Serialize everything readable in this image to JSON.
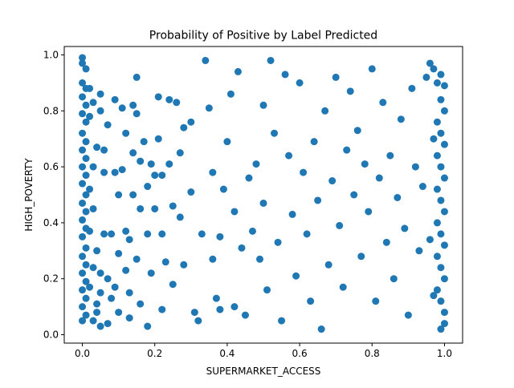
{
  "chart_data": {
    "type": "scatter",
    "title": "Probability of Positive by Label Predicted",
    "xlabel": "SUPERMARKET_ACCESS",
    "ylabel": "HIGH_POVERTY",
    "xlim": [
      -0.05,
      1.05
    ],
    "ylim": [
      -0.03,
      1.03
    ],
    "x_ticks": [
      0.0,
      0.2,
      0.4,
      0.6,
      0.8,
      1.0
    ],
    "x_tick_labels": [
      "0.0",
      "0.2",
      "0.4",
      "0.6",
      "0.8",
      "1.0"
    ],
    "y_ticks": [
      0.0,
      0.2,
      0.4,
      0.6,
      0.8,
      1.0
    ],
    "y_tick_labels": [
      "0.0",
      "0.2",
      "0.4",
      "0.6",
      "0.8",
      "1.0"
    ],
    "grid": false,
    "legend": "none",
    "marker_color": "#1f77b4",
    "series": [
      {
        "points": [
          [
            0.0,
            0.99
          ],
          [
            0.0,
            0.97
          ],
          [
            0.01,
            0.95
          ],
          [
            0.0,
            0.9
          ],
          [
            0.01,
            0.88
          ],
          [
            0.0,
            0.85
          ],
          [
            0.01,
            0.82
          ],
          [
            0.0,
            0.79
          ],
          [
            0.01,
            0.76
          ],
          [
            0.0,
            0.72
          ],
          [
            0.01,
            0.69
          ],
          [
            0.0,
            0.66
          ],
          [
            0.01,
            0.63
          ],
          [
            0.0,
            0.6
          ],
          [
            0.01,
            0.57
          ],
          [
            0.0,
            0.54
          ],
          [
            0.01,
            0.5
          ],
          [
            0.0,
            0.47
          ],
          [
            0.01,
            0.44
          ],
          [
            0.0,
            0.41
          ],
          [
            0.01,
            0.38
          ],
          [
            0.0,
            0.35
          ],
          [
            0.01,
            0.31
          ],
          [
            0.0,
            0.28
          ],
          [
            0.01,
            0.25
          ],
          [
            0.0,
            0.22
          ],
          [
            0.01,
            0.19
          ],
          [
            0.0,
            0.16
          ],
          [
            0.01,
            0.13
          ],
          [
            0.0,
            0.1
          ],
          [
            0.01,
            0.07
          ],
          [
            0.0,
            0.05
          ],
          [
            0.02,
            0.88
          ],
          [
            0.03,
            0.83
          ],
          [
            0.02,
            0.78
          ],
          [
            0.04,
            0.67
          ],
          [
            0.03,
            0.6
          ],
          [
            0.02,
            0.52
          ],
          [
            0.03,
            0.45
          ],
          [
            0.02,
            0.37
          ],
          [
            0.04,
            0.3
          ],
          [
            0.03,
            0.24
          ],
          [
            0.02,
            0.17
          ],
          [
            0.04,
            0.11
          ],
          [
            0.03,
            0.05
          ],
          [
            0.05,
            0.03
          ],
          [
            0.04,
            0.08
          ],
          [
            0.05,
            0.15
          ],
          [
            0.05,
            0.22
          ],
          [
            0.06,
            0.36
          ],
          [
            0.05,
            0.8
          ],
          [
            0.05,
            0.86
          ],
          [
            0.06,
            0.66
          ],
          [
            0.06,
            0.58
          ],
          [
            0.07,
            0.75
          ],
          [
            0.08,
            0.36
          ],
          [
            0.07,
            0.2
          ],
          [
            0.08,
            0.13
          ],
          [
            0.07,
            0.04
          ],
          [
            0.09,
            0.84
          ],
          [
            0.09,
            0.58
          ],
          [
            0.1,
            0.5
          ],
          [
            0.1,
            0.29
          ],
          [
            0.09,
            0.17
          ],
          [
            0.1,
            0.08
          ],
          [
            0.11,
            0.81
          ],
          [
            0.12,
            0.72
          ],
          [
            0.11,
            0.59
          ],
          [
            0.12,
            0.37
          ],
          [
            0.12,
            0.23
          ],
          [
            0.13,
            0.15
          ],
          [
            0.13,
            0.06
          ],
          [
            0.14,
            0.82
          ],
          [
            0.14,
            0.65
          ],
          [
            0.14,
            0.5
          ],
          [
            0.13,
            0.34
          ],
          [
            0.15,
            0.92
          ],
          [
            0.15,
            0.79
          ],
          [
            0.16,
            0.62
          ],
          [
            0.16,
            0.45
          ],
          [
            0.15,
            0.27
          ],
          [
            0.16,
            0.11
          ],
          [
            0.17,
            0.69
          ],
          [
            0.18,
            0.53
          ],
          [
            0.18,
            0.36
          ],
          [
            0.18,
            0.03
          ],
          [
            0.19,
            0.61
          ],
          [
            0.2,
            0.57
          ],
          [
            0.2,
            0.45
          ],
          [
            0.19,
            0.22
          ],
          [
            0.21,
            0.85
          ],
          [
            0.21,
            0.7
          ],
          [
            0.22,
            0.57
          ],
          [
            0.22,
            0.36
          ],
          [
            0.22,
            0.09
          ],
          [
            0.23,
            0.26
          ],
          [
            0.24,
            0.84
          ],
          [
            0.24,
            0.61
          ],
          [
            0.25,
            0.46
          ],
          [
            0.26,
            0.83
          ],
          [
            0.25,
            0.18
          ],
          [
            0.27,
            0.65
          ],
          [
            0.27,
            0.42
          ],
          [
            0.28,
            0.25
          ],
          [
            0.28,
            0.74
          ],
          [
            0.3,
            0.76
          ],
          [
            0.3,
            0.51
          ],
          [
            0.31,
            0.08
          ],
          [
            0.32,
            0.05
          ],
          [
            0.33,
            0.36
          ],
          [
            0.34,
            0.98
          ],
          [
            0.35,
            0.81
          ],
          [
            0.36,
            0.58
          ],
          [
            0.36,
            0.27
          ],
          [
            0.37,
            0.13
          ],
          [
            0.38,
            0.09
          ],
          [
            0.38,
            0.35
          ],
          [
            0.39,
            0.52
          ],
          [
            0.4,
            0.69
          ],
          [
            0.41,
            0.86
          ],
          [
            0.42,
            0.44
          ],
          [
            0.42,
            0.1
          ],
          [
            0.43,
            0.94
          ],
          [
            0.44,
            0.31
          ],
          [
            0.45,
            0.07
          ],
          [
            0.46,
            0.56
          ],
          [
            0.47,
            0.37
          ],
          [
            0.48,
            0.61
          ],
          [
            0.49,
            0.27
          ],
          [
            0.5,
            0.82
          ],
          [
            0.5,
            0.47
          ],
          [
            0.51,
            0.16
          ],
          [
            0.52,
            0.98
          ],
          [
            0.53,
            0.72
          ],
          [
            0.54,
            0.33
          ],
          [
            0.55,
            0.05
          ],
          [
            0.56,
            0.93
          ],
          [
            0.57,
            0.64
          ],
          [
            0.58,
            0.43
          ],
          [
            0.59,
            0.21
          ],
          [
            0.6,
            0.9
          ],
          [
            0.61,
            0.58
          ],
          [
            0.62,
            0.36
          ],
          [
            0.63,
            0.12
          ],
          [
            0.64,
            0.69
          ],
          [
            0.65,
            0.48
          ],
          [
            0.66,
            0.02
          ],
          [
            0.67,
            0.8
          ],
          [
            0.68,
            0.25
          ],
          [
            0.69,
            0.55
          ],
          [
            0.7,
            0.92
          ],
          [
            0.71,
            0.39
          ],
          [
            0.72,
            0.17
          ],
          [
            0.73,
            0.66
          ],
          [
            0.74,
            0.87
          ],
          [
            0.75,
            0.5
          ],
          [
            0.76,
            0.73
          ],
          [
            0.77,
            0.28
          ],
          [
            0.78,
            0.61
          ],
          [
            0.79,
            0.44
          ],
          [
            0.8,
            0.95
          ],
          [
            0.81,
            0.12
          ],
          [
            0.82,
            0.56
          ],
          [
            0.83,
            0.83
          ],
          [
            0.84,
            0.33
          ],
          [
            0.85,
            0.64
          ],
          [
            0.86,
            0.2
          ],
          [
            0.87,
            0.49
          ],
          [
            0.88,
            0.77
          ],
          [
            0.89,
            0.38
          ],
          [
            0.9,
            0.07
          ],
          [
            0.91,
            0.88
          ],
          [
            0.92,
            0.6
          ],
          [
            0.93,
            0.3
          ],
          [
            0.94,
            0.53
          ],
          [
            0.95,
            0.92
          ],
          [
            0.96,
            0.97
          ],
          [
            0.97,
            0.95
          ],
          [
            0.98,
            0.9
          ],
          [
            0.99,
            0.93
          ],
          [
            1.0,
            0.89
          ],
          [
            0.99,
            0.84
          ],
          [
            1.0,
            0.8
          ],
          [
            0.98,
            0.76
          ],
          [
            0.99,
            0.72
          ],
          [
            1.0,
            0.68
          ],
          [
            0.98,
            0.64
          ],
          [
            0.99,
            0.6
          ],
          [
            1.0,
            0.56
          ],
          [
            0.98,
            0.52
          ],
          [
            0.99,
            0.48
          ],
          [
            1.0,
            0.44
          ],
          [
            0.98,
            0.4
          ],
          [
            0.99,
            0.36
          ],
          [
            1.0,
            0.32
          ],
          [
            0.98,
            0.28
          ],
          [
            0.99,
            0.24
          ],
          [
            1.0,
            0.2
          ],
          [
            0.98,
            0.16
          ],
          [
            0.99,
            0.12
          ],
          [
            1.0,
            0.08
          ],
          [
            1.0,
            0.04
          ],
          [
            0.99,
            0.02
          ],
          [
            0.97,
            0.7
          ],
          [
            0.96,
            0.34
          ],
          [
            0.97,
            0.14
          ]
        ]
      }
    ]
  }
}
